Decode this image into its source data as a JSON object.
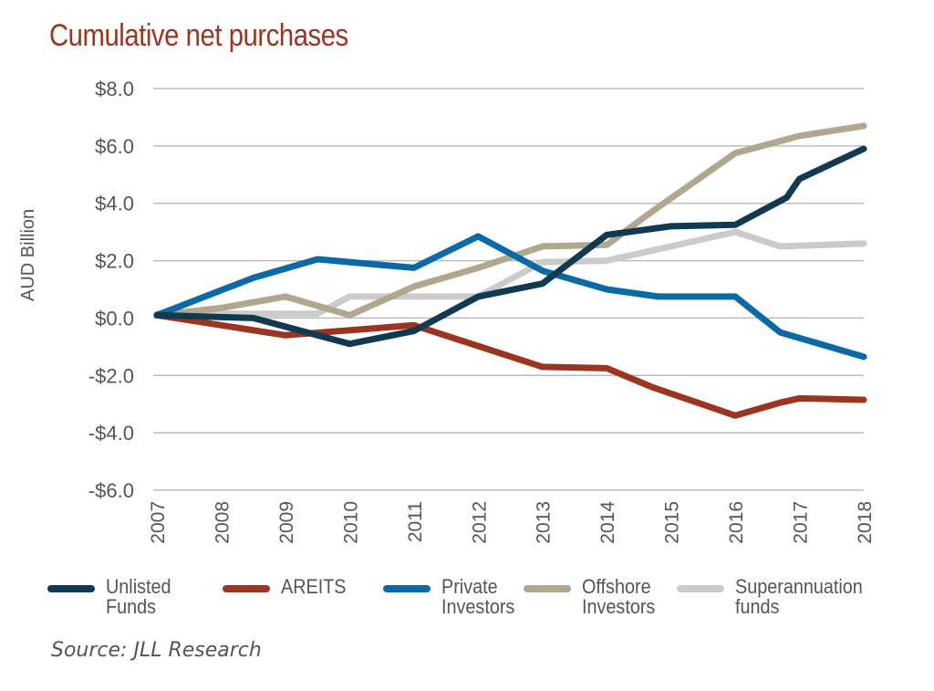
{
  "chart_data": {
    "type": "line",
    "title": "Cumulative net purchases",
    "ylabel": "AUD Billion",
    "xlabel": "",
    "ylim": [
      -6,
      8
    ],
    "yticks": [
      8,
      6,
      4,
      2,
      0,
      -2,
      -4,
      -6
    ],
    "ytick_labels": [
      "$8.0",
      "$6.0",
      "$4.0",
      "$2.0",
      "$0.0",
      "-$2.0",
      "-$4.0",
      "-$6.0"
    ],
    "xlim": [
      2007,
      2018
    ],
    "categories": [
      "2007",
      "2008",
      "2009",
      "2010",
      "2011",
      "2012",
      "2013",
      "2014",
      "2015",
      "2016",
      "2017",
      "2018"
    ],
    "grid": "horizontal",
    "legend_position": "bottom",
    "series": [
      {
        "name": "Unlisted Funds",
        "color": "#0f3a52",
        "x": [
          2007,
          2008.5,
          2010,
          2011,
          2012,
          2013,
          2014,
          2015,
          2016,
          2016.8,
          2017,
          2018
        ],
        "y": [
          0.1,
          0.0,
          -0.9,
          -0.45,
          0.75,
          1.2,
          2.9,
          3.2,
          3.25,
          4.2,
          4.85,
          5.9
        ]
      },
      {
        "name": "AREITS",
        "color": "#9b3520",
        "x": [
          2007,
          2009,
          2011,
          2013,
          2014,
          2014.7,
          2016,
          2016.7,
          2017,
          2018
        ],
        "y": [
          0.1,
          -0.6,
          -0.25,
          -1.7,
          -1.75,
          -2.4,
          -3.4,
          -2.95,
          -2.8,
          -2.85
        ]
      },
      {
        "name": "Private Investors",
        "color": "#0a6aa8",
        "x": [
          2007,
          2008.5,
          2009.5,
          2011,
          2012,
          2013,
          2014,
          2014.8,
          2016,
          2016.7,
          2018
        ],
        "y": [
          0.1,
          1.4,
          2.05,
          1.75,
          2.85,
          1.65,
          1.0,
          0.75,
          0.75,
          -0.5,
          -1.35
        ]
      },
      {
        "name": "Offshore Investors",
        "color": "#b1a68e",
        "x": [
          2007,
          2008,
          2009,
          2010,
          2011,
          2012,
          2013,
          2014,
          2014.7,
          2016,
          2017,
          2018
        ],
        "y": [
          0.1,
          0.35,
          0.75,
          0.1,
          1.1,
          1.75,
          2.5,
          2.55,
          3.7,
          5.75,
          6.35,
          6.7
        ]
      },
      {
        "name": "Superannuation funds",
        "color": "#cbcbcb",
        "x": [
          2007,
          2009.5,
          2010,
          2012,
          2013,
          2014,
          2016,
          2016.7,
          2018
        ],
        "y": [
          0.15,
          0.15,
          0.75,
          0.75,
          1.95,
          2.0,
          3.0,
          2.5,
          2.6
        ]
      }
    ]
  },
  "legend": [
    {
      "line1": "Unlisted",
      "line2": "Funds",
      "color": "#0f3a52"
    },
    {
      "line1": "AREITS",
      "line2": "",
      "color": "#9b3520"
    },
    {
      "line1": "Private",
      "line2": "Investors",
      "color": "#0a6aa8"
    },
    {
      "line1": "Offshore",
      "line2": "Investors",
      "color": "#b1a68e"
    },
    {
      "line1": "Superannuation",
      "line2": "funds",
      "color": "#cbcbcb"
    }
  ],
  "source": "Source: JLL Research"
}
